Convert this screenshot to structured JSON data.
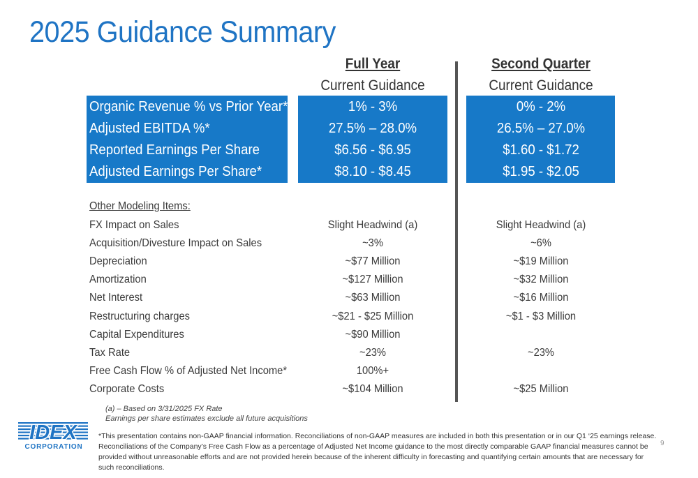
{
  "title": "2025 Guidance Summary",
  "columns": {
    "full_year": {
      "header": "Full Year",
      "subheader": "Current Guidance"
    },
    "second_quarter": {
      "header": "Second Quarter",
      "subheader": "Current Guidance"
    }
  },
  "key_metrics": [
    {
      "label": "Organic Revenue % vs Prior Year*",
      "full_year": "1% - 3%",
      "second_quarter": "0% - 2%"
    },
    {
      "label": "Adjusted EBITDA %*",
      "full_year": "27.5% – 28.0%",
      "second_quarter": "26.5% – 27.0%"
    },
    {
      "label": "Reported Earnings Per Share",
      "full_year": "$6.56 - $6.95",
      "second_quarter": "$1.60 - $1.72"
    },
    {
      "label": "Adjusted Earnings Per Share*",
      "full_year": "$8.10 - $8.45",
      "second_quarter": "$1.95 - $2.05"
    }
  ],
  "modeling_header": "Other Modeling Items:",
  "modeling_items": [
    {
      "label": "FX Impact on Sales",
      "full_year": "Slight Headwind (a)",
      "second_quarter": "Slight Headwind (a)"
    },
    {
      "label": "Acquisition/Divesture Impact on Sales",
      "full_year": "~3%",
      "second_quarter": "~6%"
    },
    {
      "label": "Depreciation",
      "full_year": "~$77 Million",
      "second_quarter": "~$19 Million"
    },
    {
      "label": "Amortization",
      "full_year": "~$127 Million",
      "second_quarter": "~$32 Million"
    },
    {
      "label": "Net Interest",
      "full_year": "~$63 Million",
      "second_quarter": "~$16 Million"
    },
    {
      "label": "Restructuring charges",
      "full_year": "~$21 - $25 Million",
      "second_quarter": "~$1 - $3 Million"
    },
    {
      "label": "Capital Expenditures",
      "full_year": "~$90 Million",
      "second_quarter": ""
    },
    {
      "label": "Tax Rate",
      "full_year": "~23%",
      "second_quarter": "~23%"
    },
    {
      "label": "Free Cash Flow % of Adjusted Net Income*",
      "full_year": "100%+",
      "second_quarter": ""
    },
    {
      "label": "Corporate Costs",
      "full_year": "~$104 Million",
      "second_quarter": "~$25 Million"
    }
  ],
  "notes": [
    "(a) – Based on 3/31/2025 FX Rate",
    "Earnings per share estimates exclude all future acquisitions"
  ],
  "disclaimer": "*This presentation contains non-GAAP financial information. Reconciliations of non-GAAP measures are included in both this presentation or in our Q1 ‘25 earnings release. Reconciliations of the Company’s Free Cash Flow as a percentage of Adjusted Net Income guidance to the most directly comparable GAAP financial measures cannot be provided without unreasonable efforts and are not provided herein because of the inherent difficulty in forecasting and quantifying certain amounts that are necessary for such reconciliations.",
  "logo": {
    "wordmark": "IDEX",
    "subtext": "CORPORATION"
  },
  "page_number": "9",
  "colors": {
    "accent": "#1779c8",
    "title": "#1f74c4"
  }
}
